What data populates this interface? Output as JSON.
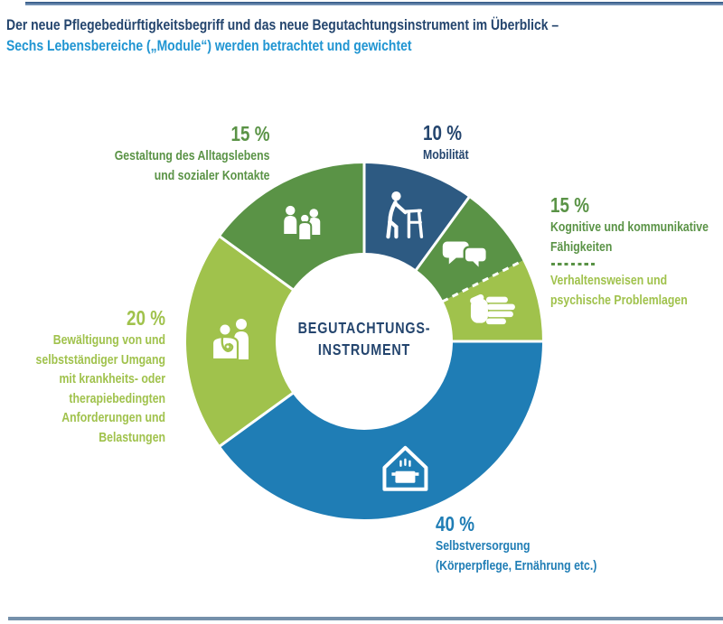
{
  "header": {
    "title_line1": "Der neue Pflegebedürftigkeitsbegriff und das neue Begutachtungsinstrument im Überblick –",
    "title_line2": "Sechs Lebensbereiche („Module“) werden betrachtet und gewichtet"
  },
  "colors": {
    "navy": "#24456e",
    "bright_blue": "#2095d2",
    "medium_green": "#5a9346",
    "light_green": "#a0c24c",
    "azure_blue": "#1f7db5",
    "dark_blue_segment": "#2d5a82",
    "top_rule_dark": "#2b5180",
    "top_rule_light": "#87a3c3",
    "bottom_rule": "#7590ab",
    "white": "#ffffff"
  },
  "chart_data": {
    "type": "pie",
    "variant": "donut",
    "title": "Der neue Pflegebedürftigkeitsbegriff und das neue Begutachtungsinstrument im Überblick – Sechs Lebensbereiche („Module“) werden betrachtet und gewichtet",
    "units": "%",
    "start_angle_deg": 0,
    "center_label_line1": "BEGUTACHTUNGS-",
    "center_label_line2": "INSTRUMENT",
    "segments": [
      {
        "id": "mobilitaet",
        "value_pct": 10,
        "color": "#2d5a82",
        "icon": "person-walker-icon",
        "divider_after": "solid",
        "label": {
          "pct": "10 %",
          "lines": [
            "Mobilität"
          ]
        }
      },
      {
        "id": "kognitive-faehigkeiten",
        "value_pct": 7.5,
        "color": "#5a9346",
        "icon": "speech-bubbles-icon",
        "divider_after": "dashed",
        "label": {
          "pct": "15 %",
          "lines": [
            "Kognitive und kommunikative",
            "Fähigkeiten"
          ]
        }
      },
      {
        "id": "verhaltensweisen",
        "value_pct": 7.5,
        "color": "#a0c24c",
        "icon": "hand-icon",
        "divider_after": "solid",
        "label": {
          "lines": [
            "Verhaltensweisen und",
            "psychische Problemlagen"
          ]
        }
      },
      {
        "id": "selbstversorgung",
        "value_pct": 40,
        "color": "#1f7db5",
        "icon": "house-cooking-pot-icon",
        "divider_after": "solid",
        "label": {
          "pct": "40 %",
          "lines": [
            "Selbstversorgung",
            "(Körperpflege, Ernährung etc.)"
          ]
        }
      },
      {
        "id": "bewaeltigung",
        "value_pct": 20,
        "color": "#a0c24c",
        "icon": "doctor-patient-icon",
        "divider_after": "solid",
        "label": {
          "pct": "20 %",
          "lines": [
            "Bewältigung von und",
            "selbstständiger Umgang",
            "mit krankheits- oder",
            "therapiebedingten",
            "Anforderungen und",
            "Belastungen"
          ]
        }
      },
      {
        "id": "gestaltung-alltagsleben",
        "value_pct": 15,
        "color": "#5a9346",
        "icon": "people-group-icon",
        "divider_after": "solid",
        "label": {
          "pct": "15 %",
          "lines": [
            "Gestaltung des Alltagslebens",
            "und sozialer Kontakte"
          ]
        }
      }
    ]
  }
}
